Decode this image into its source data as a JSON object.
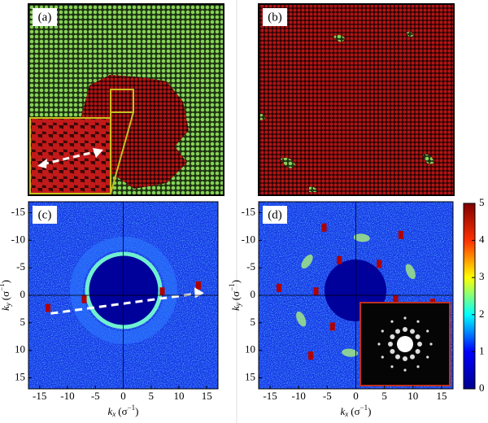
{
  "panels": [
    {
      "label": "(a)"
    },
    {
      "label": "(b)"
    },
    {
      "label": "(c)"
    },
    {
      "label": "(d)"
    }
  ],
  "axes": {
    "xlim": [
      -17,
      17
    ],
    "ylim": [
      -17,
      17
    ],
    "xticks": [
      -15,
      -10,
      -5,
      0,
      5,
      10,
      15
    ],
    "yticks": [
      -15,
      -10,
      -5,
      0,
      5,
      10,
      15
    ],
    "x_label": {
      "base": "k",
      "sub": "x",
      "unit": "(σ",
      "sup": "−1",
      "close": ")"
    },
    "y_label": {
      "base": "k",
      "sub": "y",
      "unit": "(σ",
      "sup": "−1",
      "close": ")"
    }
  },
  "colorbar": {
    "range": [
      0,
      5
    ],
    "ticks": [
      0,
      1,
      2,
      3,
      4,
      5
    ]
  }
}
